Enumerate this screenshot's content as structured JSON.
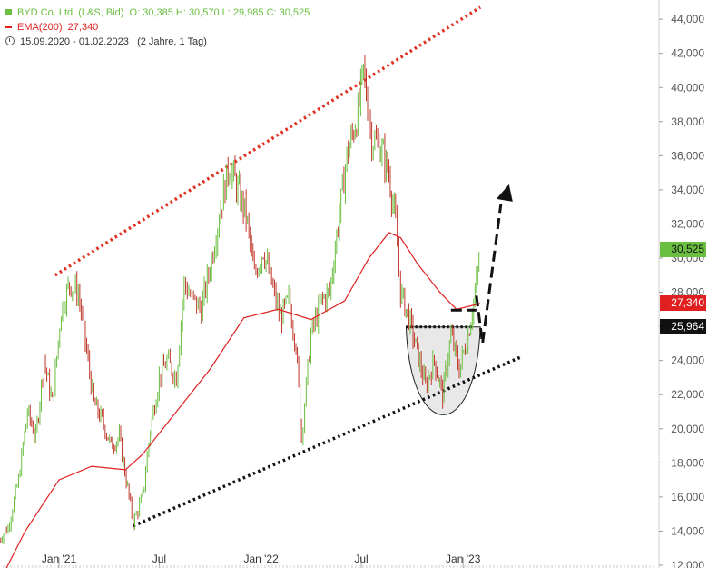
{
  "legend": {
    "title": "BYD Co. Ltd. (L&S, Bid)",
    "ohlc": "O: 30,385   H: 30,570   L: 29,985   C: 30,525",
    "ema_label": "EMA(200)",
    "ema_value": "27,340",
    "range": "15.09.2020 - 01.02.2023",
    "range_note": "(2 Jahre, 1 Tag)"
  },
  "badges": {
    "last": "30,525",
    "ema": "27,340",
    "level": "25,964"
  },
  "colors": {
    "up": "#6abf40",
    "down": "#c0392b",
    "ema": "#e02020",
    "resistance": "#e03020",
    "support": "#111111",
    "cup_fill": "#e0e0e0"
  },
  "chart_data": {
    "type": "line",
    "y_ticks": [
      "12,000",
      "14,000",
      "16,000",
      "18,000",
      "20,000",
      "22,000",
      "24,000",
      "26,000",
      "28,000",
      "30,000",
      "32,000",
      "34,000",
      "36,000",
      "38,000",
      "40,000",
      "42,000",
      "44,000"
    ],
    "x_ticks": [
      "Jan '21",
      "Jul",
      "Jan '22",
      "Jul",
      "Jan '23"
    ],
    "ylim": [
      12000,
      44700
    ],
    "series": [
      {
        "name": "BYD Co. Ltd. (L&S, Bid)",
        "points": [
          [
            "2020-09-15",
            13500
          ],
          [
            "2020-10-01",
            14200
          ],
          [
            "2020-10-20",
            17000
          ],
          [
            "2020-11-05",
            21000
          ],
          [
            "2020-11-20",
            19500
          ],
          [
            "2020-12-05",
            24000
          ],
          [
            "2020-12-20",
            21500
          ],
          [
            "2021-01-05",
            27000
          ],
          [
            "2021-01-20",
            28500
          ],
          [
            "2021-02-05",
            28000
          ],
          [
            "2021-02-20",
            24500
          ],
          [
            "2021-03-05",
            21500
          ],
          [
            "2021-03-20",
            20500
          ],
          [
            "2021-04-05",
            19000
          ],
          [
            "2021-04-20",
            19500
          ],
          [
            "2021-05-05",
            16500
          ],
          [
            "2021-05-15",
            14500
          ],
          [
            "2021-06-01",
            16000
          ],
          [
            "2021-06-15",
            20000
          ],
          [
            "2021-07-01",
            23000
          ],
          [
            "2021-07-15",
            24000
          ],
          [
            "2021-08-01",
            23000
          ],
          [
            "2021-08-15",
            28500
          ],
          [
            "2021-09-01",
            27500
          ],
          [
            "2021-09-15",
            27000
          ],
          [
            "2021-10-01",
            29500
          ],
          [
            "2021-10-20",
            33000
          ],
          [
            "2021-11-05",
            35500
          ],
          [
            "2021-11-20",
            34000
          ],
          [
            "2021-12-05",
            32500
          ],
          [
            "2021-12-20",
            29000
          ],
          [
            "2022-01-05",
            30500
          ],
          [
            "2022-01-20",
            28500
          ],
          [
            "2022-02-05",
            26500
          ],
          [
            "2022-02-20",
            27500
          ],
          [
            "2022-03-05",
            25000
          ],
          [
            "2022-03-15",
            19500
          ],
          [
            "2022-04-01",
            25500
          ],
          [
            "2022-04-20",
            27500
          ],
          [
            "2022-05-05",
            28000
          ],
          [
            "2022-05-20",
            32000
          ],
          [
            "2022-06-05",
            36000
          ],
          [
            "2022-06-25",
            38500
          ],
          [
            "2022-07-05",
            41000
          ],
          [
            "2022-07-20",
            37000
          ],
          [
            "2022-08-05",
            36500
          ],
          [
            "2022-08-20",
            35000
          ],
          [
            "2022-09-01",
            32000
          ],
          [
            "2022-09-10",
            28000
          ],
          [
            "2022-09-25",
            26500
          ],
          [
            "2022-10-10",
            24500
          ],
          [
            "2022-10-25",
            22500
          ],
          [
            "2022-11-10",
            24000
          ],
          [
            "2022-11-25",
            22000
          ],
          [
            "2022-12-10",
            25500
          ],
          [
            "2022-12-25",
            23500
          ],
          [
            "2023-01-10",
            25500
          ],
          [
            "2023-01-25",
            28500
          ],
          [
            "2023-02-01",
            30525
          ]
        ]
      },
      {
        "name": "EMA(200)",
        "points": [
          [
            "2020-09-15",
            11000
          ],
          [
            "2020-11-01",
            14000
          ],
          [
            "2021-01-01",
            17000
          ],
          [
            "2021-03-01",
            17800
          ],
          [
            "2021-05-01",
            17600
          ],
          [
            "2021-06-01",
            18500
          ],
          [
            "2021-08-01",
            21000
          ],
          [
            "2021-10-01",
            23500
          ],
          [
            "2021-12-01",
            26500
          ],
          [
            "2022-02-01",
            27000
          ],
          [
            "2022-04-01",
            26400
          ],
          [
            "2022-06-01",
            27500
          ],
          [
            "2022-07-15",
            30000
          ],
          [
            "2022-08-20",
            31500
          ],
          [
            "2022-09-10",
            31200
          ],
          [
            "2022-10-10",
            29700
          ],
          [
            "2022-11-20",
            28000
          ],
          [
            "2022-12-20",
            27000
          ],
          [
            "2023-02-01",
            27340
          ]
        ]
      }
    ],
    "annotations": [
      {
        "kind": "resistance-trendline",
        "style": "dotted",
        "color": "#e03020",
        "points": [
          [
            "2020-12-25",
            29000
          ],
          [
            "2023-02-01",
            44700
          ]
        ]
      },
      {
        "kind": "support-trendline",
        "style": "dotted",
        "color": "#111111",
        "points": [
          [
            "2021-05-15",
            14300
          ],
          [
            "2023-04-15",
            24200
          ]
        ]
      },
      {
        "kind": "horizontal-level",
        "style": "dotted",
        "value": 25964,
        "range": [
          "2022-09-20",
          "2023-01-20"
        ]
      },
      {
        "kind": "cup-pattern",
        "range": [
          "2022-09-20",
          "2023-02-01"
        ],
        "top": 25964,
        "bottom": 20700
      },
      {
        "kind": "projection-arrow",
        "style": "dashed",
        "points": [
          [
            "2023-01-25",
            27800
          ],
          [
            "2023-02-05",
            25000
          ],
          [
            "2023-03-20",
            34000
          ]
        ]
      }
    ]
  }
}
